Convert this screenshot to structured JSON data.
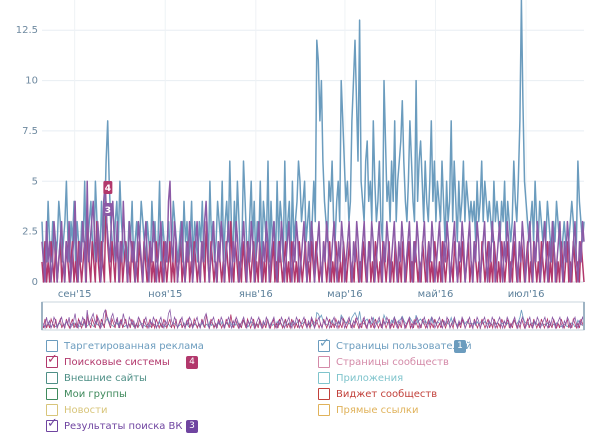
{
  "chart_data": {
    "type": "line",
    "title": "",
    "xlabel": "",
    "ylabel": "",
    "ylim": [
      0,
      14
    ],
    "y_ticks": [
      "0",
      "2.5",
      "5",
      "7.5",
      "10",
      "12.5"
    ],
    "y_tick_values": [
      0,
      2.5,
      5,
      7.5,
      10,
      12.5
    ],
    "x_tick_labels": [
      "сен'15",
      "ноя'15",
      "янв'16",
      "мар'16",
      "май'16",
      "июл'16"
    ],
    "x_tick_days": [
      22,
      83,
      144,
      204,
      265,
      326
    ],
    "x_range_days": [
      0,
      365
    ],
    "series": [
      {
        "name": "Страницы пользователей",
        "color": "#6b9cbe",
        "values": [
          3,
          1,
          2,
          1,
          4,
          2,
          1,
          3,
          2,
          1,
          2,
          4,
          3,
          1,
          2,
          3,
          5,
          2,
          1,
          3,
          2,
          4,
          1,
          3,
          2,
          1,
          3,
          2,
          5,
          1,
          2,
          3,
          4,
          2,
          1,
          5,
          3,
          2,
          1,
          4,
          2,
          3,
          6,
          8,
          5,
          3,
          2,
          1,
          3,
          4,
          2,
          5,
          3,
          2,
          1,
          2,
          1,
          3,
          2,
          4,
          1,
          2,
          3,
          1,
          2,
          4,
          3,
          2,
          1,
          3,
          2,
          1,
          4,
          2,
          3,
          1,
          2,
          5,
          1,
          3,
          2,
          1,
          2,
          3,
          1,
          2,
          4,
          3,
          2,
          1,
          2,
          3,
          1,
          4,
          2,
          3,
          1,
          2,
          4,
          1,
          3,
          2,
          1,
          3,
          2,
          4,
          1,
          2,
          3,
          1,
          5,
          2,
          3,
          1,
          2,
          4,
          3,
          2,
          5,
          1,
          3,
          4,
          2,
          6,
          3,
          1,
          4,
          2,
          5,
          3,
          1,
          2,
          6,
          4,
          2,
          1,
          3,
          5,
          2,
          4,
          1,
          3,
          2,
          5,
          1,
          4,
          3,
          2,
          6,
          1,
          4,
          2,
          3,
          1,
          5,
          2,
          4,
          3,
          1,
          6,
          2,
          3,
          4,
          1,
          5,
          2,
          3,
          4,
          6,
          5,
          3,
          4,
          5,
          2,
          3,
          4,
          1,
          3,
          5,
          3,
          12,
          11,
          8,
          10,
          6,
          4,
          3,
          2,
          5,
          4,
          6,
          3,
          2,
          4,
          5,
          3,
          10,
          8,
          6,
          4,
          5,
          3,
          4,
          8,
          10,
          12,
          9,
          6,
          13,
          5,
          4,
          3,
          6,
          7,
          4,
          5,
          3,
          8,
          5,
          3,
          4,
          6,
          3,
          2,
          10,
          7,
          4,
          5,
          3,
          6,
          4,
          8,
          3,
          5,
          6,
          7,
          9,
          6,
          4,
          3,
          5,
          8,
          6,
          4,
          3,
          10,
          4,
          6,
          7,
          5,
          3,
          6,
          4,
          3,
          5,
          8,
          4,
          6,
          3,
          5,
          4,
          3,
          6,
          4,
          2,
          5,
          3,
          4,
          8,
          3,
          6,
          4,
          2,
          5,
          3,
          4,
          6,
          3,
          5,
          4,
          3,
          4,
          3,
          4,
          2,
          5,
          3,
          4,
          6,
          3,
          5,
          4,
          3,
          4,
          3,
          2,
          5,
          3,
          4,
          3,
          2,
          4,
          3,
          5,
          2,
          4,
          3,
          2,
          3,
          6,
          4,
          3,
          5,
          8,
          14,
          9,
          5,
          4,
          3,
          2,
          3,
          4,
          2,
          5,
          3,
          2,
          4,
          3,
          2,
          3,
          2,
          4,
          3,
          2,
          1,
          3,
          2,
          4,
          3,
          2,
          1,
          2,
          3,
          2,
          1,
          2,
          3,
          4,
          3,
          1,
          2,
          6,
          4,
          3,
          2,
          3
        ]
      },
      {
        "name": "Поисковые системы",
        "color": "#b2386c",
        "values": [
          1,
          0,
          2,
          0,
          1,
          0,
          2,
          1,
          0,
          2,
          0,
          1,
          2,
          0,
          1,
          0,
          2,
          1,
          0,
          1,
          2,
          0,
          1,
          0,
          2,
          1,
          0,
          1,
          2,
          0,
          3,
          1,
          0,
          2,
          1,
          0,
          3,
          1,
          0,
          2,
          1,
          0,
          4,
          2,
          1,
          0,
          2,
          1,
          0,
          2,
          1,
          0,
          2,
          0,
          1,
          2,
          0,
          1,
          0,
          2,
          1,
          0,
          1,
          0,
          2,
          1,
          0,
          2,
          1,
          0,
          1,
          2,
          0,
          1,
          0,
          2,
          1,
          0,
          1,
          0,
          2,
          1,
          0,
          1,
          2,
          0,
          1,
          0,
          2,
          0,
          1,
          2,
          0,
          1,
          0,
          1,
          2,
          0,
          1,
          0,
          2,
          1,
          0,
          1,
          0,
          2,
          1,
          0,
          3,
          1,
          0,
          2,
          1,
          0,
          1,
          0,
          2,
          1,
          0,
          1,
          0,
          2,
          1,
          0,
          3,
          1,
          0,
          2,
          1,
          0,
          1,
          0,
          2,
          1,
          0,
          2,
          1,
          0,
          1,
          2,
          0,
          1,
          0,
          2,
          1,
          0,
          1,
          0,
          2,
          1,
          0,
          1,
          2,
          0,
          1,
          0,
          2,
          1,
          0,
          1,
          2,
          0,
          1,
          0,
          2,
          1,
          0,
          1,
          0,
          2,
          1,
          0,
          1,
          2,
          0,
          1,
          0,
          2,
          1,
          0,
          2,
          1,
          0,
          1,
          0,
          2,
          1,
          0,
          1,
          2,
          0,
          1,
          0,
          2,
          1,
          0,
          1,
          0,
          2,
          1,
          0,
          1,
          2,
          0,
          1,
          0,
          2,
          1,
          0,
          1,
          0,
          2,
          1,
          0,
          1,
          2,
          0,
          1,
          0,
          2,
          1,
          0,
          1,
          0,
          2,
          1,
          0,
          1,
          2,
          0,
          1,
          0,
          2,
          1,
          0,
          1,
          0,
          2,
          1,
          0,
          1,
          2,
          0,
          1,
          0,
          2,
          1,
          0,
          1,
          0,
          2,
          1,
          0,
          1,
          2,
          0,
          1,
          0,
          2,
          1,
          0,
          1,
          0,
          2,
          1,
          0,
          1,
          2,
          0,
          1,
          0,
          2,
          1,
          0,
          1,
          0,
          2,
          1,
          0,
          1,
          2,
          0,
          1,
          0,
          2,
          1,
          0,
          1,
          0,
          2,
          1,
          0,
          1,
          2,
          0,
          1,
          0,
          2,
          1,
          0,
          1,
          0,
          2,
          1,
          0,
          1,
          2,
          0,
          1,
          0,
          2,
          1,
          0,
          1,
          0,
          2,
          1,
          0,
          1,
          2,
          0,
          1,
          0,
          2,
          1,
          0,
          1,
          0,
          2,
          1,
          0,
          1,
          2,
          0,
          1,
          0,
          2,
          1,
          0,
          1,
          0,
          2,
          1,
          0,
          1,
          2,
          0,
          1,
          0,
          2,
          1,
          0,
          1,
          0,
          2,
          1,
          0
        ]
      },
      {
        "name": "Результаты поиска ВК",
        "color": "#8b5aa6",
        "values": [
          2,
          1,
          0,
          3,
          1,
          2,
          0,
          1,
          3,
          2,
          0,
          1,
          2,
          3,
          1,
          0,
          2,
          1,
          3,
          0,
          1,
          2,
          4,
          1,
          0,
          2,
          1,
          3,
          2,
          0,
          5,
          1,
          2,
          3,
          4,
          2,
          1,
          3,
          2,
          0,
          1,
          4,
          5,
          3,
          2,
          1,
          3,
          4,
          2,
          1,
          3,
          0,
          2,
          1,
          4,
          2,
          1,
          0,
          3,
          2,
          1,
          2,
          0,
          1,
          3,
          2,
          1,
          0,
          2,
          3,
          1,
          0,
          2,
          1,
          3,
          2,
          0,
          1,
          2,
          3,
          1,
          0,
          2,
          1,
          4,
          5,
          2,
          1,
          3,
          2,
          0,
          1,
          2,
          3,
          1,
          0,
          2,
          1,
          3,
          2,
          0,
          1,
          2,
          3,
          1,
          0,
          2,
          1,
          3,
          4,
          2,
          0,
          1,
          2,
          3,
          1,
          0,
          2,
          1,
          3,
          2,
          0,
          1,
          2,
          3,
          1,
          0,
          2,
          1,
          3,
          2,
          0,
          1,
          2,
          3,
          1,
          0,
          2,
          1,
          3,
          2,
          0,
          1,
          2,
          3,
          1,
          0,
          2,
          1,
          3,
          2,
          0,
          1,
          2,
          3,
          1,
          0,
          2,
          1,
          3,
          2,
          0,
          1,
          2,
          3,
          1,
          0,
          2,
          1,
          3,
          2,
          0,
          1,
          2,
          3,
          1,
          0,
          2,
          1,
          3,
          2,
          0,
          1,
          2,
          3,
          1,
          0,
          2,
          1,
          3,
          2,
          0,
          1,
          2,
          3,
          1,
          0,
          2,
          1,
          3,
          2,
          0,
          1,
          2,
          3,
          1,
          0,
          2,
          1,
          3,
          2,
          0,
          1,
          2,
          3,
          1,
          0,
          2,
          1,
          3,
          2,
          0,
          1,
          2,
          3,
          1,
          0,
          2,
          1,
          3,
          2,
          0,
          1,
          2,
          3,
          1,
          0,
          2,
          1,
          3,
          2,
          0,
          1,
          2,
          3,
          1,
          0,
          2,
          1,
          3,
          2,
          0,
          1,
          2,
          3,
          1,
          0,
          2,
          1,
          3,
          2,
          0,
          1,
          2,
          3,
          1,
          0,
          2,
          1,
          3,
          2,
          0,
          1,
          2,
          3,
          1,
          0,
          2,
          1,
          3,
          2,
          0,
          1,
          2,
          3,
          1,
          0,
          2,
          1,
          3,
          2,
          0,
          1,
          2,
          3,
          1,
          0,
          2,
          1,
          3,
          2,
          0,
          1,
          2,
          3,
          1,
          0,
          2,
          1,
          3,
          2,
          0,
          1,
          2,
          3,
          1,
          0,
          2,
          1,
          3,
          2,
          0,
          1,
          2,
          3,
          1,
          0,
          2,
          1,
          3,
          2,
          0,
          1,
          2,
          3,
          1,
          0,
          2,
          1,
          3,
          2,
          0,
          1,
          2,
          3,
          1,
          0,
          2,
          1,
          3,
          2,
          0,
          1,
          2,
          3,
          1,
          0,
          2,
          1,
          3,
          2
        ]
      }
    ],
    "annotations": [
      {
        "text": "4",
        "day": 42,
        "y": 4,
        "color": "#b2386c"
      },
      {
        "text": "3",
        "day": 42,
        "y": 3,
        "color": "#8b5aa6"
      }
    ]
  },
  "legend": {
    "items": [
      {
        "label": "Таргетированная реклама",
        "color": "#6b9cbe",
        "checked": false,
        "badge": ""
      },
      {
        "label": "Страницы пользователей",
        "color": "#6b9cbe",
        "checked": true,
        "badge": "1"
      },
      {
        "label": "Поисковые системы",
        "color": "#b2386c",
        "checked": true,
        "badge": "4"
      },
      {
        "label": "Страницы сообществ",
        "color": "#d48aa8",
        "checked": false,
        "badge": ""
      },
      {
        "label": "Внешние сайты",
        "color": "#4e8f86",
        "checked": false,
        "badge": ""
      },
      {
        "label": "Приложения",
        "color": "#7fc4cc",
        "checked": false,
        "badge": ""
      },
      {
        "label": "Мои группы",
        "color": "#3f8a5c",
        "checked": false,
        "badge": ""
      },
      {
        "label": "Виджет сообществ",
        "color": "#c2403a",
        "checked": false,
        "badge": ""
      },
      {
        "label": "Новости",
        "color": "#d8c57a",
        "checked": false,
        "badge": ""
      },
      {
        "label": "Прямые ссылки",
        "color": "#e0b25a",
        "checked": false,
        "badge": ""
      },
      {
        "label": "Результаты поиска ВК",
        "color": "#6f44a0",
        "checked": true,
        "badge": "3"
      }
    ]
  }
}
